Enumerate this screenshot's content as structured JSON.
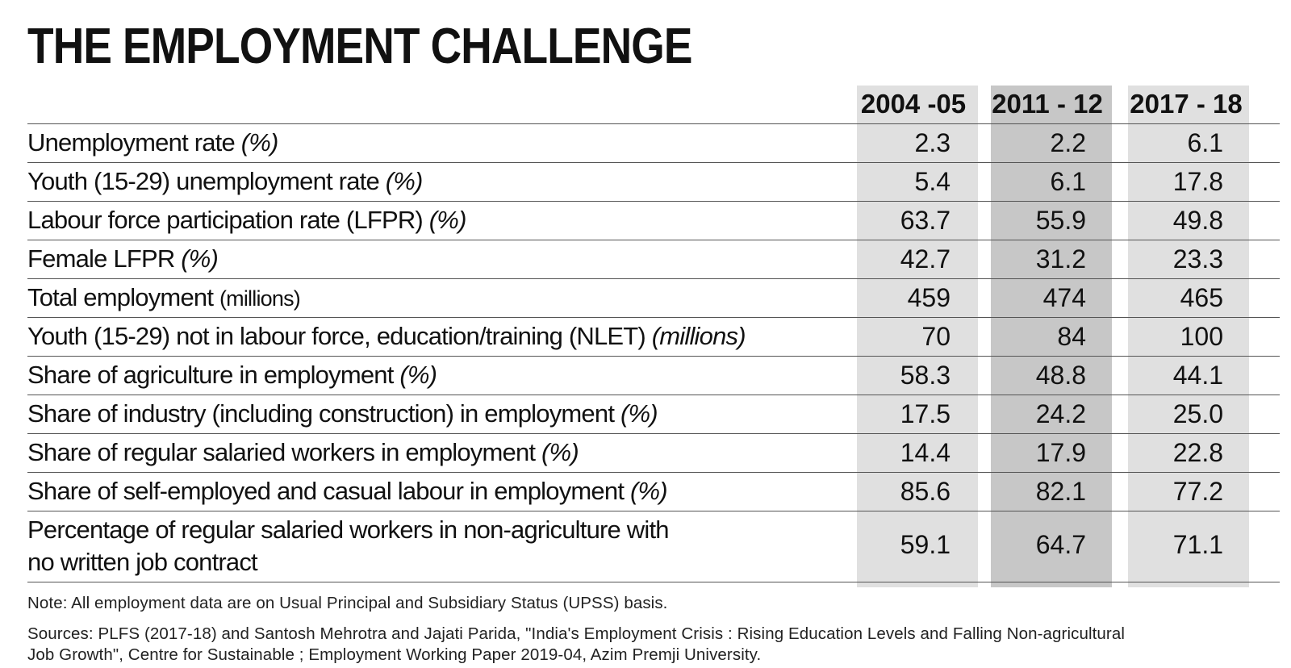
{
  "chart_data": {
    "type": "table",
    "title": "THE EMPLOYMENT CHALLENGE",
    "columns": [
      "2004 -05",
      "2011 - 12",
      "2017 - 18"
    ],
    "rows": [
      {
        "label": "Unemployment rate",
        "unit": "(%)",
        "values": [
          "2.3",
          "2.2",
          "6.1"
        ]
      },
      {
        "label": "Youth (15-29) unemployment rate",
        "unit": "(%)",
        "values": [
          "5.4",
          "6.1",
          "17.8"
        ]
      },
      {
        "label": "Labour force participation rate (LFPR)",
        "unit": "(%)",
        "values": [
          "63.7",
          "55.9",
          "49.8"
        ]
      },
      {
        "label": "Female LFPR",
        "unit": "(%)",
        "values": [
          "42.7",
          "31.2",
          "23.3"
        ]
      },
      {
        "label": "Total employment",
        "unit": "(millions)",
        "values": [
          "459",
          "474",
          "465"
        ]
      },
      {
        "label": "Youth (15-29) not in labour force, education/training (NLET)",
        "unit": "(millions)",
        "values": [
          "70",
          "84",
          "100"
        ]
      },
      {
        "label": "Share of agriculture in employment",
        "unit": "(%)",
        "values": [
          "58.3",
          "48.8",
          "44.1"
        ]
      },
      {
        "label": "Share of industry (including construction) in employment",
        "unit": "(%)",
        "values": [
          "17.5",
          "24.2",
          "25.0"
        ]
      },
      {
        "label": "Share of regular salaried workers in employment",
        "unit": "(%)",
        "values": [
          "14.4",
          "17.9",
          "22.8"
        ]
      },
      {
        "label": "Share of self-employed and casual labour in employment",
        "unit": "(%)",
        "values": [
          "85.6",
          "82.1",
          "77.2"
        ]
      },
      {
        "label_line1": "Percentage of regular salaried workers in non-agriculture with",
        "label_line2": "no written job contract",
        "values": [
          "59.1",
          "64.7",
          "71.1"
        ]
      }
    ],
    "column_shading": [
      "#e0e0e0",
      "#c7c7c7",
      "#e0e0e0"
    ]
  },
  "footer": {
    "note": "Note: All employment data are on Usual Principal and Subsidiary Status (UPSS) basis.",
    "sources_line1": "Sources: PLFS (2017-18) and Santosh Mehrotra and Jajati Parida, \"India's Employment Crisis : Rising Education Levels and Falling Non-agricultural",
    "sources_line2": "Job Growth\", Centre for Sustainable ; Employment Working Paper 2019-04, Azim Premji University."
  }
}
